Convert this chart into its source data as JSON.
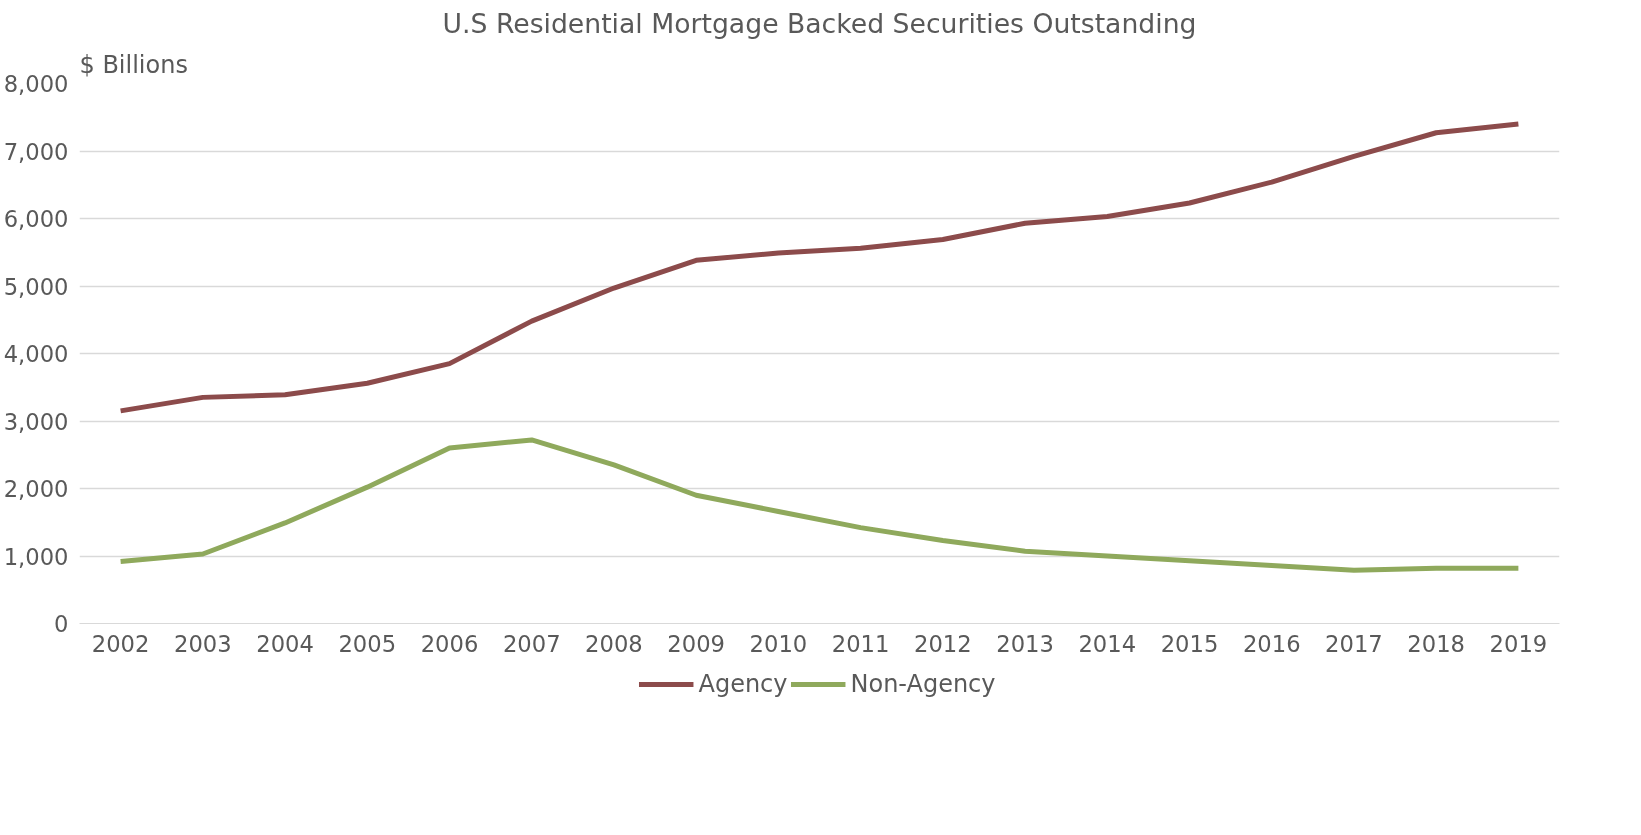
{
  "chart_data": {
    "type": "line",
    "title": "U.S Residential Mortgage Backed Securities Outstanding",
    "ylabel": "$ Billions",
    "categories": [
      "2002",
      "2003",
      "2004",
      "2005",
      "2006",
      "2007",
      "2008",
      "2009",
      "2010",
      "2011",
      "2012",
      "2013",
      "2014",
      "2015",
      "2016",
      "2017",
      "2018",
      "2019"
    ],
    "series": [
      {
        "name": "Agency",
        "color": "#8c4b4b",
        "values": [
          3150,
          3350,
          3390,
          3560,
          3850,
          4480,
          4970,
          5380,
          5490,
          5560,
          5690,
          5930,
          6030,
          6230,
          6540,
          6920,
          7270,
          7400
        ]
      },
      {
        "name": "Non-Agency",
        "color": "#8fa95c",
        "values": [
          920,
          1030,
          1490,
          2020,
          2600,
          2720,
          2350,
          1900,
          1660,
          1420,
          1230,
          1070,
          1000,
          930,
          860,
          790,
          820,
          820
        ]
      }
    ],
    "ylim": [
      0,
      8000
    ],
    "yticks": [
      0,
      {
        "value": 1000,
        "label": "1,000"
      },
      {
        "value": 2000,
        "label": "2,000"
      },
      {
        "value": 3000,
        "label": "3,000"
      },
      {
        "value": 4000,
        "label": "4,000"
      },
      {
        "value": 5000,
        "label": "5,000"
      },
      {
        "value": 6000,
        "label": "6,000"
      },
      {
        "value": 7000,
        "label": "7,000"
      },
      {
        "value": 8000,
        "label": "8,000"
      }
    ],
    "grid": "y",
    "legend": "bottom",
    "marker": "none",
    "line_style": "solid"
  }
}
